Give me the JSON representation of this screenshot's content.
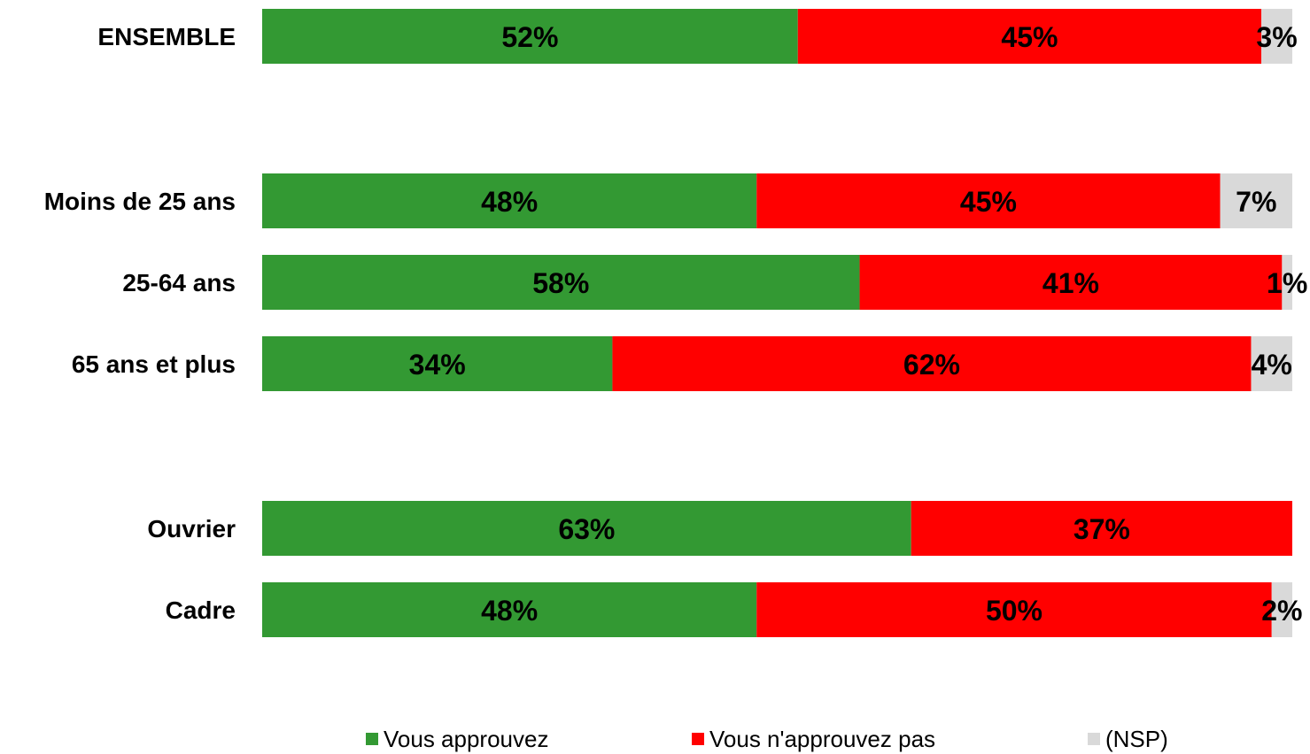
{
  "chart_data": {
    "type": "bar",
    "orientation": "horizontal",
    "stacked": true,
    "percent_stacked": true,
    "categories": [
      "ENSEMBLE",
      "Moins de 25 ans",
      "25-64 ans",
      "65 ans et plus",
      "Ouvrier",
      "Cadre"
    ],
    "series": [
      {
        "name": "Vous approuvez",
        "color": "#339933",
        "values": [
          52,
          48,
          58,
          34,
          63,
          48
        ],
        "labels": [
          "52%",
          "48%",
          "58%",
          "34%",
          "63%",
          "48%"
        ]
      },
      {
        "name": "Vous n'approuvez pas",
        "color": "#ff0000",
        "values": [
          45,
          45,
          41,
          62,
          37,
          50
        ],
        "labels": [
          "45%",
          "45%",
          "41%",
          "62%",
          "37%",
          "50%"
        ]
      },
      {
        "name": "(NSP)",
        "color": "#d9d9d9",
        "values": [
          3,
          7,
          1,
          4,
          0,
          2
        ],
        "labels": [
          "3%",
          "7%",
          "1%",
          "4%",
          "",
          "2%"
        ]
      }
    ],
    "xlim": [
      0,
      100
    ],
    "grid": false,
    "legend_position": "bottom",
    "title": "",
    "xlabel": "",
    "ylabel": ""
  }
}
